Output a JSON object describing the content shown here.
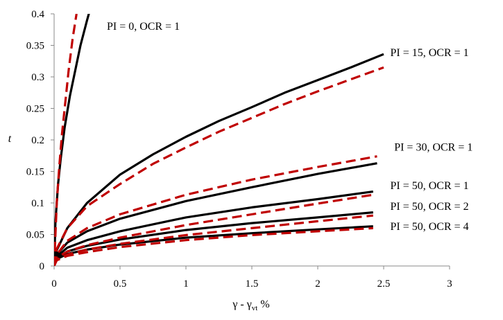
{
  "chart_data": {
    "type": "line",
    "xlabel": "γ - γvt %",
    "xlabel_main": "γ - γ",
    "xlabel_sub": "vt",
    "xlabel_suffix": " %",
    "ylabel": "t",
    "xlim": [
      0,
      3
    ],
    "ylim": [
      0,
      0.4
    ],
    "x_ticks": [
      "0",
      "0.5",
      "1",
      "1.5",
      "2",
      "2.5",
      "3"
    ],
    "y_ticks": [
      "0",
      "0.05",
      "0.1",
      "0.15",
      "0.2",
      "0.25",
      "0.3",
      "0.35",
      "0.4"
    ],
    "grid": false,
    "line_styles": {
      "solid": {
        "color": "#000000"
      },
      "dashed": {
        "color": "#c00000"
      }
    },
    "series": [
      {
        "group": "PI = 0, OCR = 1",
        "style": "solid",
        "x": [
          0,
          0.01,
          0.03,
          0.05,
          0.08,
          0.12,
          0.16,
          0.2,
          0.25,
          0.29
        ],
        "y": [
          0,
          0.07,
          0.13,
          0.17,
          0.22,
          0.27,
          0.31,
          0.35,
          0.39,
          0.42
        ]
      },
      {
        "group": "PI = 0, OCR = 1",
        "style": "dashed",
        "x": [
          0,
          0.01,
          0.02,
          0.04,
          0.06,
          0.08,
          0.11,
          0.14,
          0.17
        ],
        "y": [
          0,
          0.05,
          0.1,
          0.16,
          0.21,
          0.25,
          0.31,
          0.36,
          0.4
        ]
      },
      {
        "group": "PI = 15, OCR = 1",
        "label": "PI = 15, OCR = 1",
        "style": "solid",
        "x": [
          0,
          0.02,
          0.1,
          0.25,
          0.5,
          0.75,
          1.0,
          1.25,
          1.5,
          1.75,
          2.0,
          2.25,
          2.5
        ],
        "y": [
          0,
          0.025,
          0.06,
          0.1,
          0.145,
          0.177,
          0.205,
          0.23,
          0.252,
          0.275,
          0.295,
          0.315,
          0.336
        ]
      },
      {
        "group": "PI = 15, OCR = 1",
        "style": "dashed",
        "x": [
          0,
          0.02,
          0.1,
          0.25,
          0.5,
          0.75,
          1.0,
          1.25,
          1.5,
          1.75,
          2.0,
          2.25,
          2.5
        ],
        "y": [
          0,
          0.027,
          0.06,
          0.095,
          0.13,
          0.162,
          0.188,
          0.213,
          0.235,
          0.257,
          0.277,
          0.296,
          0.315
        ]
      },
      {
        "group": "PI = 30, OCR = 1",
        "label": "PI = 30, OCR = 1",
        "style": "solid",
        "x": [
          0,
          0.02,
          0.1,
          0.25,
          0.5,
          1.0,
          1.5,
          2.0,
          2.45
        ],
        "y": [
          0,
          0.018,
          0.037,
          0.055,
          0.075,
          0.103,
          0.125,
          0.146,
          0.163
        ]
      },
      {
        "group": "PI = 30, OCR = 1",
        "style": "dashed",
        "x": [
          0,
          0.02,
          0.1,
          0.25,
          0.5,
          1.0,
          1.5,
          2.0,
          2.45
        ],
        "y": [
          0,
          0.018,
          0.04,
          0.06,
          0.082,
          0.113,
          0.137,
          0.157,
          0.174
        ]
      },
      {
        "group": "PI = 50, OCR = 1",
        "label": "PI = 50, OCR = 1",
        "style": "solid",
        "x": [
          0,
          0.02,
          0.1,
          0.25,
          0.5,
          1.0,
          1.5,
          2.0,
          2.42
        ],
        "y": [
          0,
          0.015,
          0.029,
          0.041,
          0.055,
          0.077,
          0.093,
          0.106,
          0.118
        ]
      },
      {
        "group": "PI = 50, OCR = 1",
        "style": "dashed",
        "x": [
          0,
          0.02,
          0.1,
          0.25,
          0.5,
          1.0,
          1.5,
          2.0,
          2.42
        ],
        "y": [
          0,
          0.013,
          0.023,
          0.033,
          0.045,
          0.065,
          0.082,
          0.099,
          0.113
        ]
      },
      {
        "group": "PI = 50, OCR = 2",
        "label": "PI = 50, OCR = 2",
        "style": "solid",
        "x": [
          0,
          0.02,
          0.1,
          0.25,
          0.5,
          1.0,
          1.5,
          2.0,
          2.42
        ],
        "y": [
          0,
          0.012,
          0.023,
          0.032,
          0.042,
          0.057,
          0.068,
          0.077,
          0.085
        ]
      },
      {
        "group": "PI = 50, OCR = 2",
        "style": "dashed",
        "x": [
          0,
          0.02,
          0.1,
          0.25,
          0.5,
          1.0,
          1.5,
          2.0,
          2.42
        ],
        "y": [
          0,
          0.01,
          0.018,
          0.026,
          0.035,
          0.049,
          0.06,
          0.071,
          0.08
        ]
      },
      {
        "group": "PI = 50, OCR = 4",
        "label": "PI = 50, OCR = 4",
        "style": "solid",
        "x": [
          0,
          0.02,
          0.1,
          0.25,
          0.5,
          1.0,
          1.5,
          2.0,
          2.42
        ],
        "y": [
          0,
          0.011,
          0.019,
          0.026,
          0.034,
          0.045,
          0.052,
          0.058,
          0.063
        ]
      },
      {
        "group": "PI = 50, OCR = 4",
        "style": "dashed",
        "x": [
          0,
          0.02,
          0.1,
          0.25,
          0.5,
          1.0,
          1.5,
          2.0,
          2.42
        ],
        "y": [
          0,
          0.009,
          0.016,
          0.022,
          0.03,
          0.041,
          0.049,
          0.055,
          0.06
        ]
      }
    ],
    "annotations": [
      {
        "text": "PI = 0, OCR = 1",
        "x": 0.4,
        "y": 0.375
      },
      {
        "text": "PI = 15, OCR = 1",
        "x": 2.55,
        "y": 0.333
      },
      {
        "text": "PI = 30, OCR = 1",
        "x": 2.58,
        "y": 0.183
      },
      {
        "text": "PI = 50, OCR = 1",
        "x": 2.55,
        "y": 0.122
      },
      {
        "text": "PI = 50, OCR = 2",
        "x": 2.55,
        "y": 0.089
      },
      {
        "text": "PI = 50, OCR = 4",
        "x": 2.55,
        "y": 0.057
      }
    ]
  }
}
